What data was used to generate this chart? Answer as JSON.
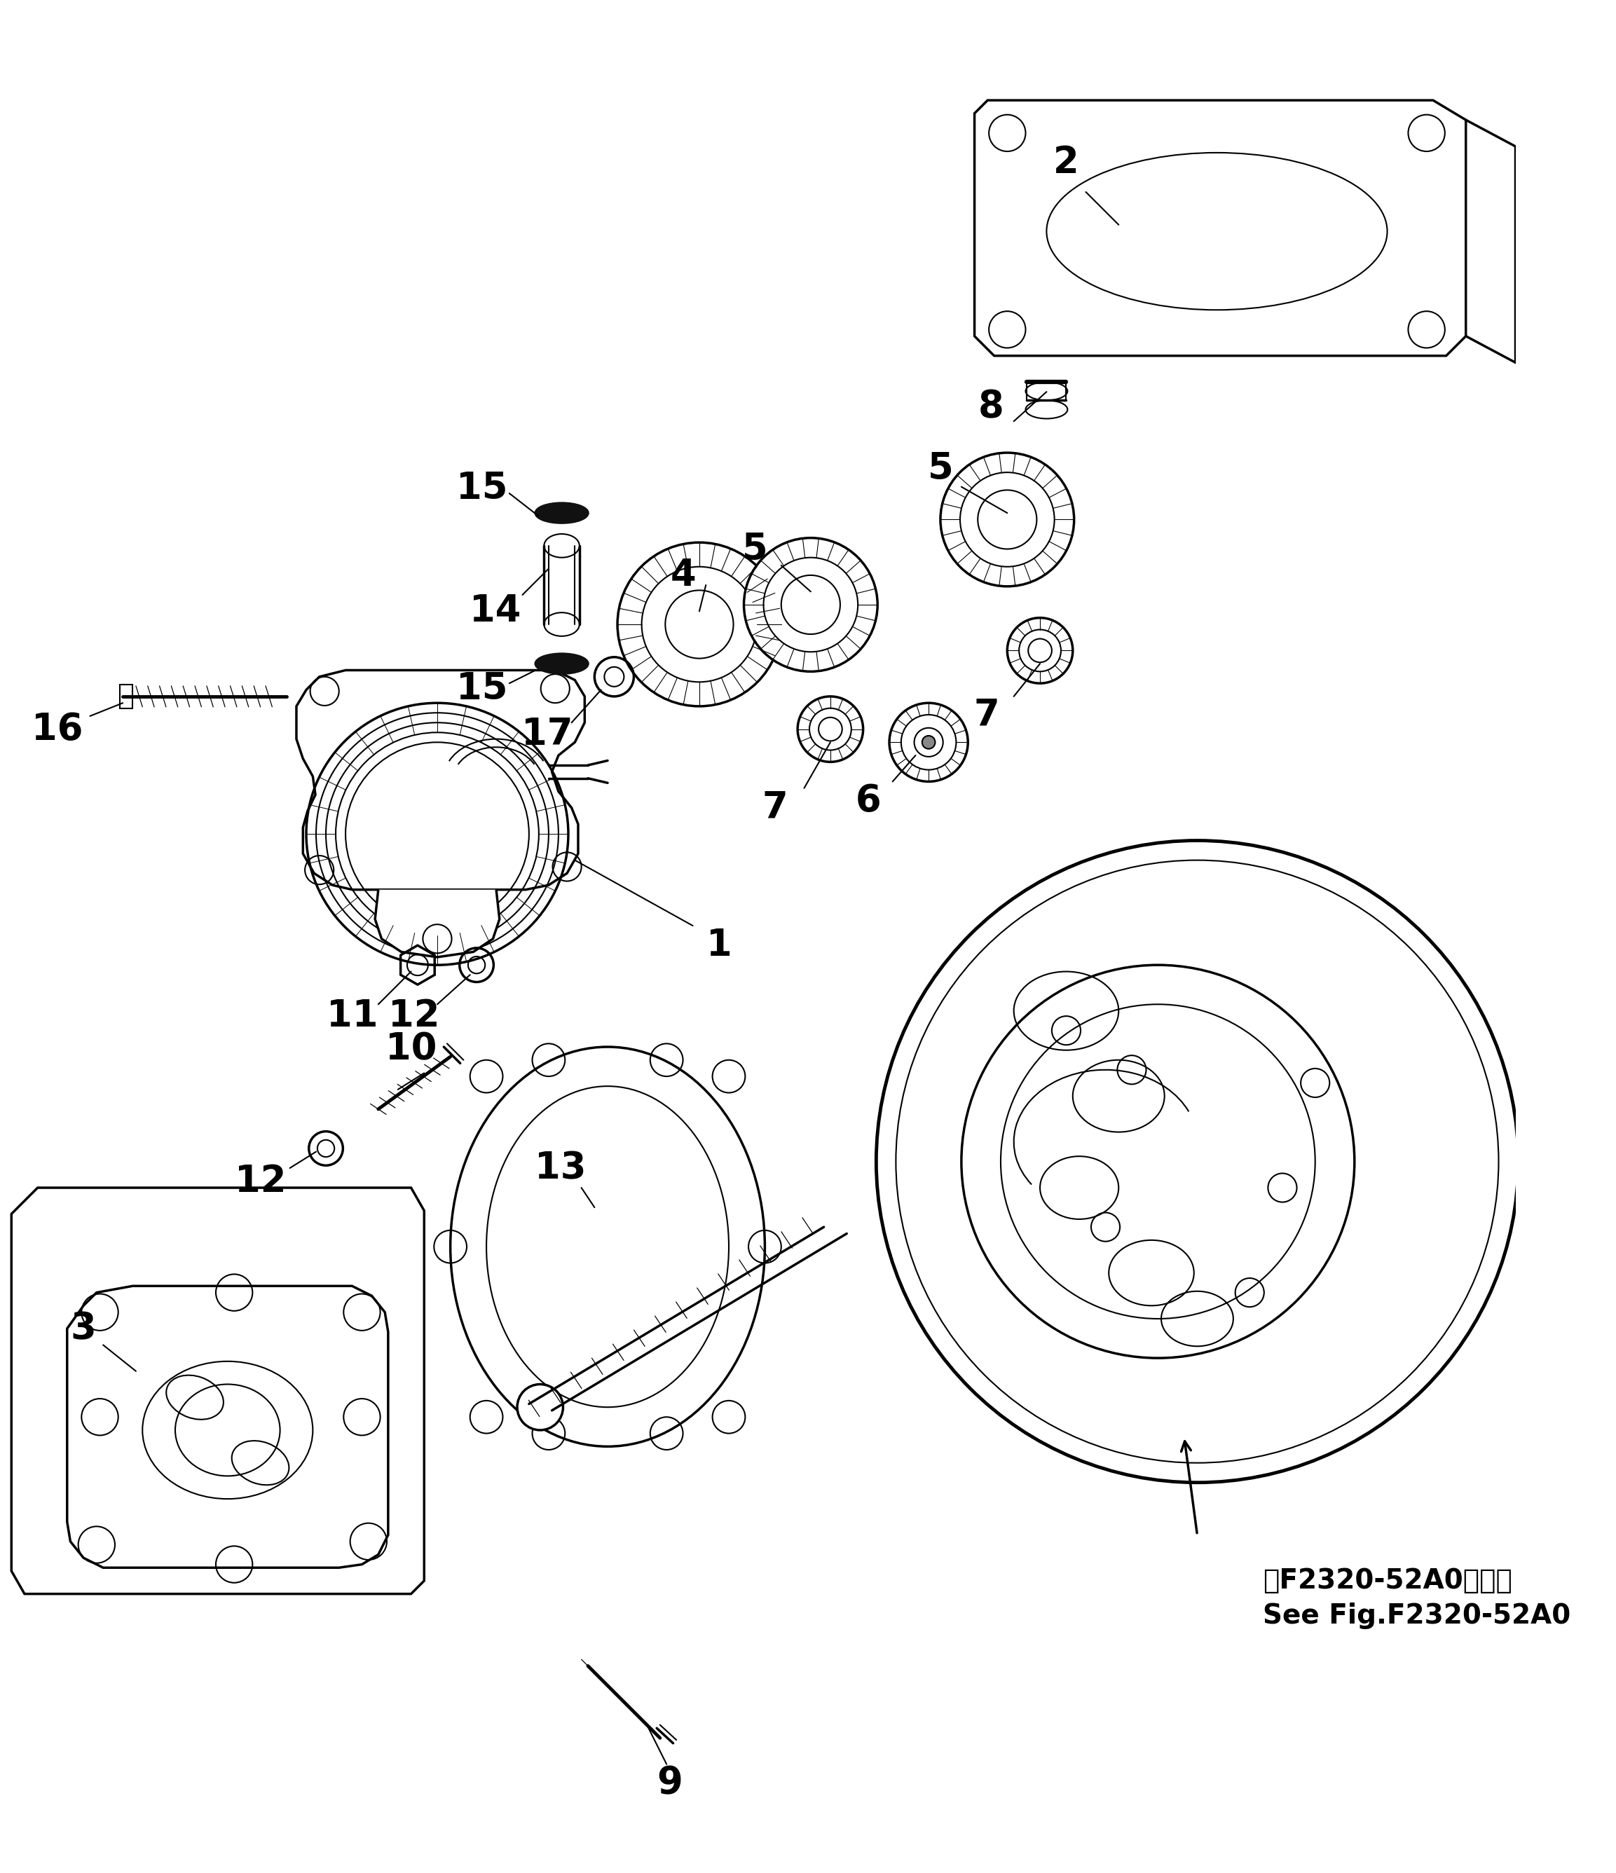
{
  "bg_color": "#ffffff",
  "line_color": "#000000",
  "fig_width": 23.06,
  "fig_height": 26.73,
  "annotation_line1": "第F2320-52A0図参照",
  "annotation_line2": "See Fig.F2320-52A0"
}
